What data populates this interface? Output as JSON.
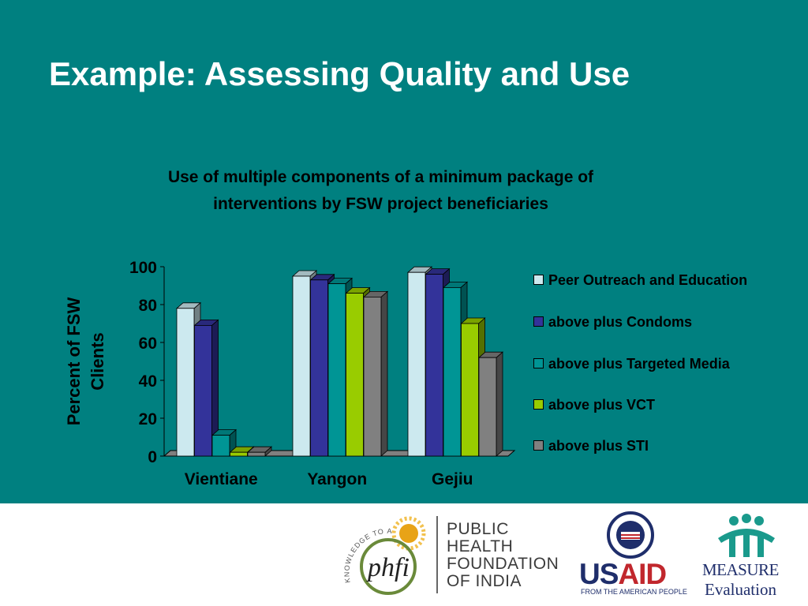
{
  "slide": {
    "title": "Example: Assessing Quality and Use"
  },
  "chart_data": {
    "type": "bar",
    "title_lines": [
      "Use of multiple components of a minimum package of",
      "interventions by FSW project beneficiaries"
    ],
    "ylabel_lines": [
      "Percent of FSW",
      "Clients"
    ],
    "xlabel": "",
    "ylim": [
      0,
      100
    ],
    "yticks": [
      0,
      20,
      40,
      60,
      80,
      100
    ],
    "categories": [
      "Vientiane",
      "Yangon",
      "Gejiu"
    ],
    "legend_position": "right",
    "series": [
      {
        "name": "Peer Outreach and Education",
        "color": "#cce9ef",
        "values": [
          78,
          95,
          97
        ]
      },
      {
        "name": "above plus Condoms",
        "color": "#33339a",
        "values": [
          69,
          93,
          96
        ]
      },
      {
        "name": "above plus Targeted Media",
        "color": "#009595",
        "values": [
          11,
          91,
          89
        ]
      },
      {
        "name": "above plus VCT",
        "color": "#99cc00",
        "values": [
          2,
          86,
          70
        ]
      },
      {
        "name": "above plus STI",
        "color": "#808080",
        "values": [
          2,
          84,
          52
        ]
      }
    ]
  },
  "footer": {
    "phfi_lines": [
      "PUBLIC",
      "HEALTH",
      "FOUNDATION",
      "OF INDIA"
    ],
    "phfi_mark": "phfi",
    "phfi_arc": "KNOWLEDGE TO ACTION",
    "usaid_word_us": "US",
    "usaid_word_aid": "AID",
    "usaid_tagline": "FROM THE AMERICAN PEOPLE",
    "measure_word": "MEASURE",
    "measure_sub": "Evaluation"
  }
}
